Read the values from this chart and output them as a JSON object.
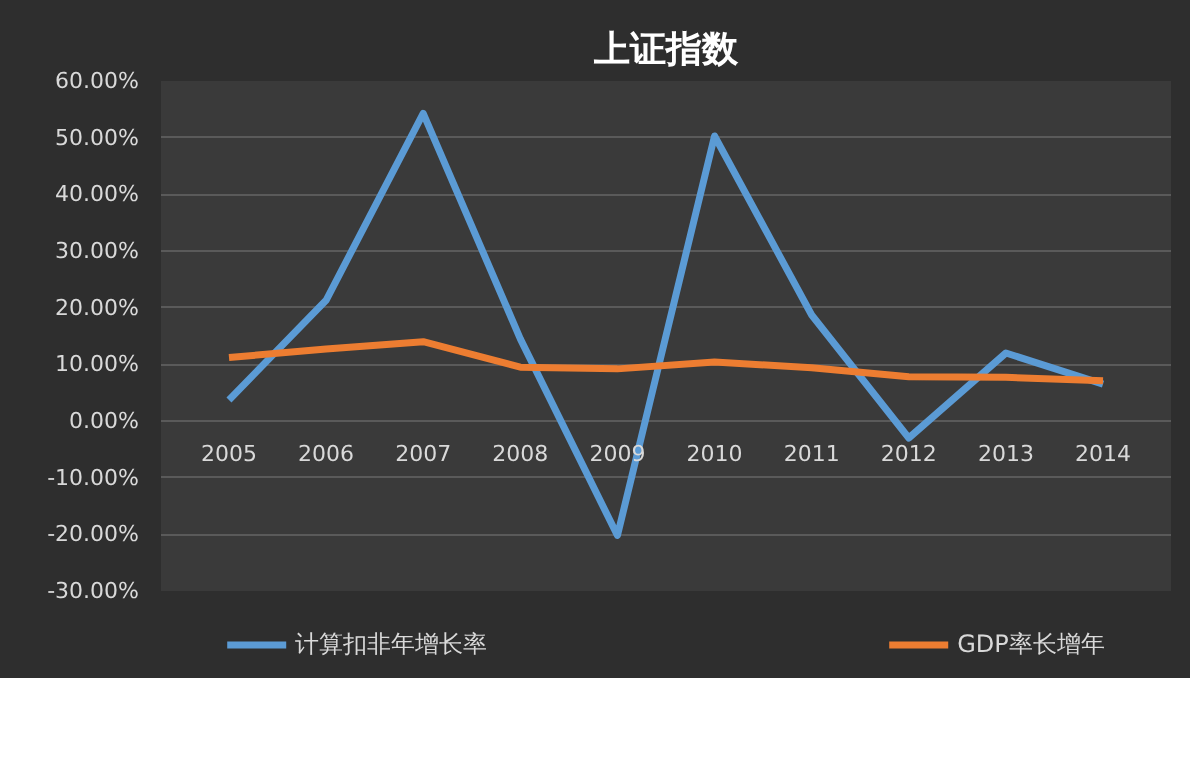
{
  "chart_data": {
    "type": "line",
    "title": "上证指数",
    "categories": [
      "2005",
      "2006",
      "2007",
      "2008",
      "2009",
      "2010",
      "2011",
      "2012",
      "2013",
      "2014"
    ],
    "series": [
      {
        "name": "计算扣非年增长率",
        "color": "#5b9bd5",
        "values": [
          3.7,
          21.3,
          54.3,
          14.5,
          -20.2,
          50.3,
          18.7,
          -3.0,
          12.0,
          6.5
        ]
      },
      {
        "name": "GDP率长增年",
        "color": "#ed7d31",
        "values": [
          11.2,
          12.7,
          14.0,
          9.5,
          9.2,
          10.4,
          9.4,
          7.8,
          7.7,
          7.1
        ]
      }
    ],
    "ylim": [
      -30,
      60
    ],
    "yticks": [
      {
        "value": -30,
        "label": "-30.00%"
      },
      {
        "value": -20,
        "label": "-20.00%"
      },
      {
        "value": -10,
        "label": "-10.00%"
      },
      {
        "value": 0,
        "label": "0.00%"
      },
      {
        "value": 10,
        "label": "10.00%"
      },
      {
        "value": 20,
        "label": "20.00%"
      },
      {
        "value": 30,
        "label": "30.00%"
      },
      {
        "value": 40,
        "label": "40.00%"
      },
      {
        "value": 50,
        "label": "50.00%"
      },
      {
        "value": 60,
        "label": "60.00%"
      }
    ],
    "grid": "y",
    "legend": "bottom",
    "marker": "none",
    "line_style": "solid"
  }
}
